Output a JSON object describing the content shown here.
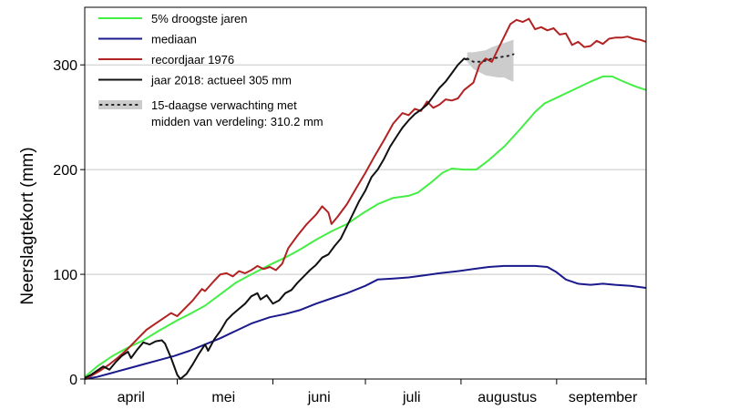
{
  "chart_data": {
    "type": "line",
    "title": "",
    "xlabel": "",
    "ylabel": "Neerslagtekort (mm)",
    "ylim": [
      0,
      355
    ],
    "yticks": [
      0,
      100,
      200,
      300
    ],
    "xlim": [
      "2018-04-01",
      "2018-09-30"
    ],
    "month_labels": [
      {
        "label": "april",
        "x": "2018-04-16"
      },
      {
        "label": "mei",
        "x": "2018-05-16"
      },
      {
        "label": "juni",
        "x": "2018-06-16"
      },
      {
        "label": "juli",
        "x": "2018-07-16"
      },
      {
        "label": "augustus",
        "x": "2018-08-16"
      },
      {
        "label": "september",
        "x": "2018-09-16"
      }
    ],
    "month_ticks": [
      "2018-04-01",
      "2018-05-01",
      "2018-06-01",
      "2018-07-01",
      "2018-08-01",
      "2018-09-01",
      "2018-09-30"
    ],
    "grid": "horizontal",
    "legend_position": "top-left",
    "series": [
      {
        "name": "5% droogste jaren",
        "color": "#44ee44",
        "points": [
          [
            "2018-04-01",
            2
          ],
          [
            "2018-04-05",
            12
          ],
          [
            "2018-04-10",
            22
          ],
          [
            "2018-04-15",
            30
          ],
          [
            "2018-04-20",
            37
          ],
          [
            "2018-04-25",
            46
          ],
          [
            "2018-05-01",
            56
          ],
          [
            "2018-05-05",
            62
          ],
          [
            "2018-05-10",
            70
          ],
          [
            "2018-05-15",
            81
          ],
          [
            "2018-05-20",
            92
          ],
          [
            "2018-05-25",
            100
          ],
          [
            "2018-05-31",
            109
          ],
          [
            "2018-06-05",
            116
          ],
          [
            "2018-06-10",
            124
          ],
          [
            "2018-06-15",
            133
          ],
          [
            "2018-06-20",
            141
          ],
          [
            "2018-06-25",
            148
          ],
          [
            "2018-06-30",
            158
          ],
          [
            "2018-07-05",
            167
          ],
          [
            "2018-07-10",
            173
          ],
          [
            "2018-07-15",
            175
          ],
          [
            "2018-07-18",
            178
          ],
          [
            "2018-07-22",
            187
          ],
          [
            "2018-07-26",
            197
          ],
          [
            "2018-07-29",
            201
          ],
          [
            "2018-08-02",
            200
          ],
          [
            "2018-08-06",
            200
          ],
          [
            "2018-08-10",
            209
          ],
          [
            "2018-08-15",
            222
          ],
          [
            "2018-08-20",
            238
          ],
          [
            "2018-08-25",
            255
          ],
          [
            "2018-08-28",
            263
          ],
          [
            "2018-09-02",
            270
          ],
          [
            "2018-09-07",
            277
          ],
          [
            "2018-09-12",
            284
          ],
          [
            "2018-09-16",
            289
          ],
          [
            "2018-09-19",
            289
          ],
          [
            "2018-09-22",
            285
          ],
          [
            "2018-09-26",
            280
          ],
          [
            "2018-09-30",
            276
          ]
        ]
      },
      {
        "name": "mediaan",
        "color": "#1a1a8c",
        "points": [
          [
            "2018-04-01",
            0
          ],
          [
            "2018-04-05",
            2
          ],
          [
            "2018-04-10",
            6
          ],
          [
            "2018-04-15",
            10
          ],
          [
            "2018-04-20",
            14
          ],
          [
            "2018-04-25",
            18
          ],
          [
            "2018-04-30",
            22
          ],
          [
            "2018-05-05",
            27
          ],
          [
            "2018-05-10",
            33
          ],
          [
            "2018-05-15",
            39
          ],
          [
            "2018-05-20",
            46
          ],
          [
            "2018-05-25",
            53
          ],
          [
            "2018-05-31",
            59
          ],
          [
            "2018-06-05",
            62
          ],
          [
            "2018-06-10",
            66
          ],
          [
            "2018-06-15",
            72
          ],
          [
            "2018-06-20",
            77
          ],
          [
            "2018-06-25",
            82
          ],
          [
            "2018-07-01",
            89
          ],
          [
            "2018-07-05",
            95
          ],
          [
            "2018-07-10",
            96
          ],
          [
            "2018-07-15",
            97
          ],
          [
            "2018-07-20",
            99
          ],
          [
            "2018-07-25",
            101
          ],
          [
            "2018-07-31",
            103
          ],
          [
            "2018-08-05",
            105
          ],
          [
            "2018-08-10",
            107
          ],
          [
            "2018-08-15",
            108
          ],
          [
            "2018-08-20",
            108
          ],
          [
            "2018-08-25",
            108
          ],
          [
            "2018-08-29",
            107
          ],
          [
            "2018-09-01",
            102
          ],
          [
            "2018-09-04",
            95
          ],
          [
            "2018-09-08",
            91
          ],
          [
            "2018-09-12",
            90
          ],
          [
            "2018-09-16",
            91
          ],
          [
            "2018-09-20",
            90
          ],
          [
            "2018-09-25",
            89
          ],
          [
            "2018-09-30",
            87
          ]
        ]
      },
      {
        "name": "recordjaar 1976",
        "color": "#b22222",
        "points": [
          [
            "2018-04-01",
            0
          ],
          [
            "2018-04-03",
            3
          ],
          [
            "2018-04-06",
            8
          ],
          [
            "2018-04-09",
            14
          ],
          [
            "2018-04-12",
            21
          ],
          [
            "2018-04-15",
            29
          ],
          [
            "2018-04-18",
            38
          ],
          [
            "2018-04-21",
            47
          ],
          [
            "2018-04-24",
            53
          ],
          [
            "2018-04-27",
            59
          ],
          [
            "2018-04-29",
            63
          ],
          [
            "2018-05-01",
            60
          ],
          [
            "2018-05-03",
            66
          ],
          [
            "2018-05-06",
            75
          ],
          [
            "2018-05-09",
            86
          ],
          [
            "2018-05-10",
            84
          ],
          [
            "2018-05-13",
            94
          ],
          [
            "2018-05-15",
            100
          ],
          [
            "2018-05-17",
            101
          ],
          [
            "2018-05-19",
            98
          ],
          [
            "2018-05-21",
            103
          ],
          [
            "2018-05-23",
            101
          ],
          [
            "2018-05-25",
            104
          ],
          [
            "2018-05-27",
            108
          ],
          [
            "2018-05-29",
            105
          ],
          [
            "2018-05-31",
            107
          ],
          [
            "2018-06-02",
            104
          ],
          [
            "2018-06-04",
            110
          ],
          [
            "2018-06-06",
            125
          ],
          [
            "2018-06-09",
            137
          ],
          [
            "2018-06-12",
            148
          ],
          [
            "2018-06-15",
            157
          ],
          [
            "2018-06-17",
            165
          ],
          [
            "2018-06-19",
            159
          ],
          [
            "2018-06-20",
            148
          ],
          [
            "2018-06-22",
            155
          ],
          [
            "2018-06-25",
            167
          ],
          [
            "2018-06-28",
            182
          ],
          [
            "2018-07-01",
            197
          ],
          [
            "2018-07-04",
            213
          ],
          [
            "2018-07-07",
            228
          ],
          [
            "2018-07-10",
            244
          ],
          [
            "2018-07-13",
            254
          ],
          [
            "2018-07-15",
            252
          ],
          [
            "2018-07-17",
            258
          ],
          [
            "2018-07-19",
            256
          ],
          [
            "2018-07-21",
            265
          ],
          [
            "2018-07-23",
            259
          ],
          [
            "2018-07-25",
            262
          ],
          [
            "2018-07-27",
            267
          ],
          [
            "2018-07-29",
            266
          ],
          [
            "2018-07-31",
            268
          ],
          [
            "2018-08-02",
            276
          ],
          [
            "2018-08-05",
            283
          ],
          [
            "2018-08-07",
            300
          ],
          [
            "2018-08-09",
            306
          ],
          [
            "2018-08-11",
            303
          ],
          [
            "2018-08-13",
            315
          ],
          [
            "2018-08-15",
            327
          ],
          [
            "2018-08-17",
            339
          ],
          [
            "2018-08-19",
            343
          ],
          [
            "2018-08-21",
            341
          ],
          [
            "2018-08-23",
            344
          ],
          [
            "2018-08-25",
            334
          ],
          [
            "2018-08-27",
            336
          ],
          [
            "2018-08-29",
            333
          ],
          [
            "2018-08-31",
            335
          ],
          [
            "2018-09-02",
            329
          ],
          [
            "2018-09-04",
            330
          ],
          [
            "2018-09-06",
            319
          ],
          [
            "2018-09-08",
            322
          ],
          [
            "2018-09-10",
            317
          ],
          [
            "2018-09-12",
            318
          ],
          [
            "2018-09-14",
            323
          ],
          [
            "2018-09-16",
            320
          ],
          [
            "2018-09-18",
            325
          ],
          [
            "2018-09-20",
            326
          ],
          [
            "2018-09-22",
            326
          ],
          [
            "2018-09-24",
            327
          ],
          [
            "2018-09-26",
            325
          ],
          [
            "2018-09-28",
            324
          ],
          [
            "2018-09-30",
            322
          ]
        ]
      },
      {
        "name": "jaar 2018: actueel 305 mm",
        "color": "#111111",
        "points": [
          [
            "2018-04-01",
            1
          ],
          [
            "2018-04-03",
            4
          ],
          [
            "2018-04-05",
            8
          ],
          [
            "2018-04-07",
            12
          ],
          [
            "2018-04-09",
            9
          ],
          [
            "2018-04-11",
            16
          ],
          [
            "2018-04-13",
            22
          ],
          [
            "2018-04-15",
            26
          ],
          [
            "2018-04-16",
            20
          ],
          [
            "2018-04-18",
            28
          ],
          [
            "2018-04-20",
            35
          ],
          [
            "2018-04-22",
            33
          ],
          [
            "2018-04-24",
            36
          ],
          [
            "2018-04-26",
            37
          ],
          [
            "2018-04-27",
            34
          ],
          [
            "2018-04-29",
            20
          ],
          [
            "2018-05-01",
            4
          ],
          [
            "2018-05-02",
            0
          ],
          [
            "2018-05-04",
            5
          ],
          [
            "2018-05-06",
            14
          ],
          [
            "2018-05-08",
            24
          ],
          [
            "2018-05-10",
            33
          ],
          [
            "2018-05-11",
            27
          ],
          [
            "2018-05-13",
            38
          ],
          [
            "2018-05-15",
            46
          ],
          [
            "2018-05-17",
            56
          ],
          [
            "2018-05-19",
            62
          ],
          [
            "2018-05-21",
            67
          ],
          [
            "2018-05-23",
            72
          ],
          [
            "2018-05-25",
            79
          ],
          [
            "2018-05-27",
            82
          ],
          [
            "2018-05-28",
            76
          ],
          [
            "2018-05-30",
            80
          ],
          [
            "2018-06-01",
            72
          ],
          [
            "2018-06-03",
            75
          ],
          [
            "2018-06-05",
            82
          ],
          [
            "2018-06-07",
            85
          ],
          [
            "2018-06-09",
            92
          ],
          [
            "2018-06-11",
            98
          ],
          [
            "2018-06-13",
            104
          ],
          [
            "2018-06-15",
            109
          ],
          [
            "2018-06-17",
            116
          ],
          [
            "2018-06-19",
            119
          ],
          [
            "2018-06-21",
            127
          ],
          [
            "2018-06-23",
            134
          ],
          [
            "2018-06-25",
            146
          ],
          [
            "2018-06-27",
            158
          ],
          [
            "2018-06-29",
            170
          ],
          [
            "2018-07-01",
            180
          ],
          [
            "2018-07-03",
            193
          ],
          [
            "2018-07-05",
            200
          ],
          [
            "2018-07-07",
            210
          ],
          [
            "2018-07-09",
            222
          ],
          [
            "2018-07-11",
            231
          ],
          [
            "2018-07-13",
            240
          ],
          [
            "2018-07-15",
            247
          ],
          [
            "2018-07-17",
            253
          ],
          [
            "2018-07-19",
            257
          ],
          [
            "2018-07-21",
            262
          ],
          [
            "2018-07-23",
            270
          ],
          [
            "2018-07-25",
            278
          ],
          [
            "2018-07-27",
            284
          ],
          [
            "2018-07-29",
            292
          ],
          [
            "2018-07-31",
            300
          ],
          [
            "2018-08-02",
            306
          ],
          [
            "2018-08-03",
            305
          ]
        ]
      }
    ],
    "forecast": {
      "label_line1": "15-daagse verwachting met",
      "label_line2": "midden van verdeling: 310.2 mm",
      "color": "#cccccc",
      "dot_color": "#222222",
      "points": [
        [
          "2018-08-03",
          303,
          312,
          306
        ],
        [
          "2018-08-05",
          296,
          312,
          303
        ],
        [
          "2018-08-07",
          293,
          313,
          303
        ],
        [
          "2018-08-09",
          290,
          314,
          304
        ],
        [
          "2018-08-11",
          289,
          317,
          306
        ],
        [
          "2018-08-13",
          288,
          319,
          307
        ],
        [
          "2018-08-15",
          288,
          321,
          308
        ],
        [
          "2018-08-17",
          285,
          323,
          309
        ],
        [
          "2018-08-18",
          284,
          324,
          310.2
        ]
      ]
    }
  }
}
